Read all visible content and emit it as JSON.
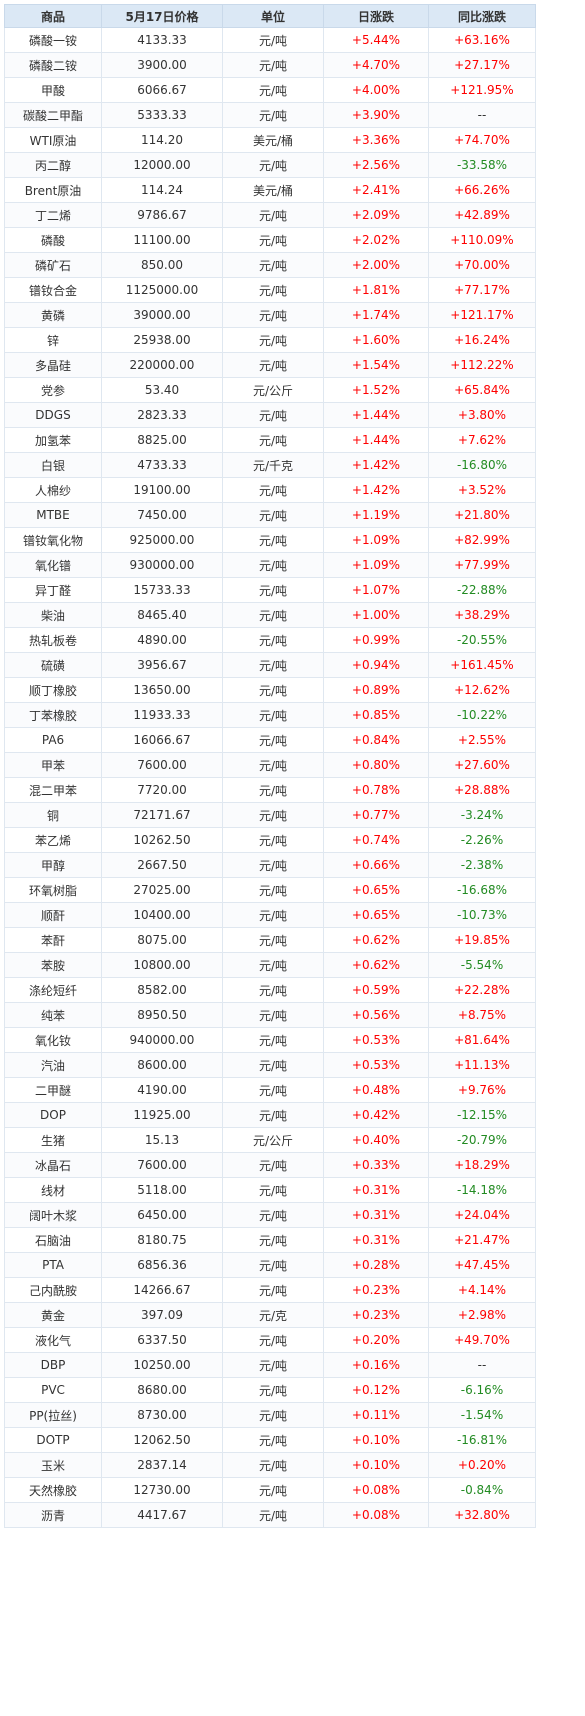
{
  "table": {
    "headers": [
      "商品",
      "5月17日价格",
      "单位",
      "日涨跌",
      "同比涨跌"
    ],
    "rows": [
      [
        "磷酸一铵",
        "4133.33",
        "元/吨",
        "+5.44%",
        "+63.16%"
      ],
      [
        "磷酸二铵",
        "3900.00",
        "元/吨",
        "+4.70%",
        "+27.17%"
      ],
      [
        "甲酸",
        "6066.67",
        "元/吨",
        "+4.00%",
        "+121.95%"
      ],
      [
        "碳酸二甲酯",
        "5333.33",
        "元/吨",
        "+3.90%",
        "--"
      ],
      [
        "WTI原油",
        "114.20",
        "美元/桶",
        "+3.36%",
        "+74.70%"
      ],
      [
        "丙二醇",
        "12000.00",
        "元/吨",
        "+2.56%",
        "-33.58%"
      ],
      [
        "Brent原油",
        "114.24",
        "美元/桶",
        "+2.41%",
        "+66.26%"
      ],
      [
        "丁二烯",
        "9786.67",
        "元/吨",
        "+2.09%",
        "+42.89%"
      ],
      [
        "磷酸",
        "11100.00",
        "元/吨",
        "+2.02%",
        "+110.09%"
      ],
      [
        "磷矿石",
        "850.00",
        "元/吨",
        "+2.00%",
        "+70.00%"
      ],
      [
        "镨钕合金",
        "1125000.00",
        "元/吨",
        "+1.81%",
        "+77.17%"
      ],
      [
        "黄磷",
        "39000.00",
        "元/吨",
        "+1.74%",
        "+121.17%"
      ],
      [
        "锌",
        "25938.00",
        "元/吨",
        "+1.60%",
        "+16.24%"
      ],
      [
        "多晶硅",
        "220000.00",
        "元/吨",
        "+1.54%",
        "+112.22%"
      ],
      [
        "党参",
        "53.40",
        "元/公斤",
        "+1.52%",
        "+65.84%"
      ],
      [
        "DDGS",
        "2823.33",
        "元/吨",
        "+1.44%",
        "+3.80%"
      ],
      [
        "加氢苯",
        "8825.00",
        "元/吨",
        "+1.44%",
        "+7.62%"
      ],
      [
        "白银",
        "4733.33",
        "元/千克",
        "+1.42%",
        "-16.80%"
      ],
      [
        "人棉纱",
        "19100.00",
        "元/吨",
        "+1.42%",
        "+3.52%"
      ],
      [
        "MTBE",
        "7450.00",
        "元/吨",
        "+1.19%",
        "+21.80%"
      ],
      [
        "镨钕氧化物",
        "925000.00",
        "元/吨",
        "+1.09%",
        "+82.99%"
      ],
      [
        "氧化镨",
        "930000.00",
        "元/吨",
        "+1.09%",
        "+77.99%"
      ],
      [
        "异丁醛",
        "15733.33",
        "元/吨",
        "+1.07%",
        "-22.88%"
      ],
      [
        "柴油",
        "8465.40",
        "元/吨",
        "+1.00%",
        "+38.29%"
      ],
      [
        "热轧板卷",
        "4890.00",
        "元/吨",
        "+0.99%",
        "-20.55%"
      ],
      [
        "硫磺",
        "3956.67",
        "元/吨",
        "+0.94%",
        "+161.45%"
      ],
      [
        "顺丁橡胶",
        "13650.00",
        "元/吨",
        "+0.89%",
        "+12.62%"
      ],
      [
        "丁苯橡胶",
        "11933.33",
        "元/吨",
        "+0.85%",
        "-10.22%"
      ],
      [
        "PA6",
        "16066.67",
        "元/吨",
        "+0.84%",
        "+2.55%"
      ],
      [
        "甲苯",
        "7600.00",
        "元/吨",
        "+0.80%",
        "+27.60%"
      ],
      [
        "混二甲苯",
        "7720.00",
        "元/吨",
        "+0.78%",
        "+28.88%"
      ],
      [
        "铜",
        "72171.67",
        "元/吨",
        "+0.77%",
        "-3.24%"
      ],
      [
        "苯乙烯",
        "10262.50",
        "元/吨",
        "+0.74%",
        "-2.26%"
      ],
      [
        "甲醇",
        "2667.50",
        "元/吨",
        "+0.66%",
        "-2.38%"
      ],
      [
        "环氧树脂",
        "27025.00",
        "元/吨",
        "+0.65%",
        "-16.68%"
      ],
      [
        "顺酐",
        "10400.00",
        "元/吨",
        "+0.65%",
        "-10.73%"
      ],
      [
        "苯酐",
        "8075.00",
        "元/吨",
        "+0.62%",
        "+19.85%"
      ],
      [
        "苯胺",
        "10800.00",
        "元/吨",
        "+0.62%",
        "-5.54%"
      ],
      [
        "涤纶短纤",
        "8582.00",
        "元/吨",
        "+0.59%",
        "+22.28%"
      ],
      [
        "纯苯",
        "8950.50",
        "元/吨",
        "+0.56%",
        "+8.75%"
      ],
      [
        "氧化钕",
        "940000.00",
        "元/吨",
        "+0.53%",
        "+81.64%"
      ],
      [
        "汽油",
        "8600.00",
        "元/吨",
        "+0.53%",
        "+11.13%"
      ],
      [
        "二甲醚",
        "4190.00",
        "元/吨",
        "+0.48%",
        "+9.76%"
      ],
      [
        "DOP",
        "11925.00",
        "元/吨",
        "+0.42%",
        "-12.15%"
      ],
      [
        "生猪",
        "15.13",
        "元/公斤",
        "+0.40%",
        "-20.79%"
      ],
      [
        "冰晶石",
        "7600.00",
        "元/吨",
        "+0.33%",
        "+18.29%"
      ],
      [
        "线材",
        "5118.00",
        "元/吨",
        "+0.31%",
        "-14.18%"
      ],
      [
        "阔叶木浆",
        "6450.00",
        "元/吨",
        "+0.31%",
        "+24.04%"
      ],
      [
        "石脑油",
        "8180.75",
        "元/吨",
        "+0.31%",
        "+21.47%"
      ],
      [
        "PTA",
        "6856.36",
        "元/吨",
        "+0.28%",
        "+47.45%"
      ],
      [
        "己内酰胺",
        "14266.67",
        "元/吨",
        "+0.23%",
        "+4.14%"
      ],
      [
        "黄金",
        "397.09",
        "元/克",
        "+0.23%",
        "+2.98%"
      ],
      [
        "液化气",
        "6337.50",
        "元/吨",
        "+0.20%",
        "+49.70%"
      ],
      [
        "DBP",
        "10250.00",
        "元/吨",
        "+0.16%",
        "--"
      ],
      [
        "PVC",
        "8680.00",
        "元/吨",
        "+0.12%",
        "-6.16%"
      ],
      [
        "PP(拉丝)",
        "8730.00",
        "元/吨",
        "+0.11%",
        "-1.54%"
      ],
      [
        "DOTP",
        "12062.50",
        "元/吨",
        "+0.10%",
        "-16.81%"
      ],
      [
        "玉米",
        "2837.14",
        "元/吨",
        "+0.10%",
        "+0.20%"
      ],
      [
        "天然橡胶",
        "12730.00",
        "元/吨",
        "+0.08%",
        "-0.84%"
      ],
      [
        "沥青",
        "4417.67",
        "元/吨",
        "+0.08%",
        "+32.80%"
      ]
    ]
  },
  "colors": {
    "positive": "#ff0000",
    "negative": "#228b22",
    "neutral": "#333333",
    "header_bg": "#dbe8f5"
  }
}
